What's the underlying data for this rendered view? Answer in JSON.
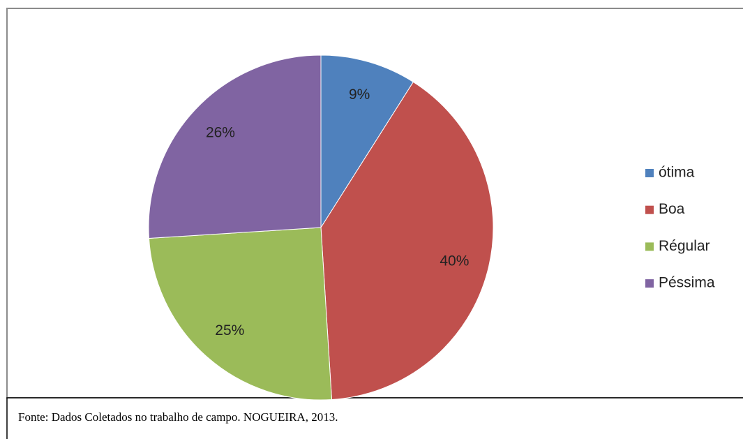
{
  "chart_data": {
    "type": "pie",
    "categories": [
      "ótima",
      "Boa",
      "Régular",
      "Péssima"
    ],
    "values": [
      9,
      40,
      25,
      26
    ],
    "value_labels": [
      "9%",
      "40%",
      "25%",
      "26%"
    ],
    "colors": [
      "#4f81bd",
      "#c0504d",
      "#9bbb59",
      "#8064a2"
    ],
    "legend": "right"
  },
  "source": "Fonte: Dados Coletados no trabalho de campo. NOGUEIRA, 2013."
}
